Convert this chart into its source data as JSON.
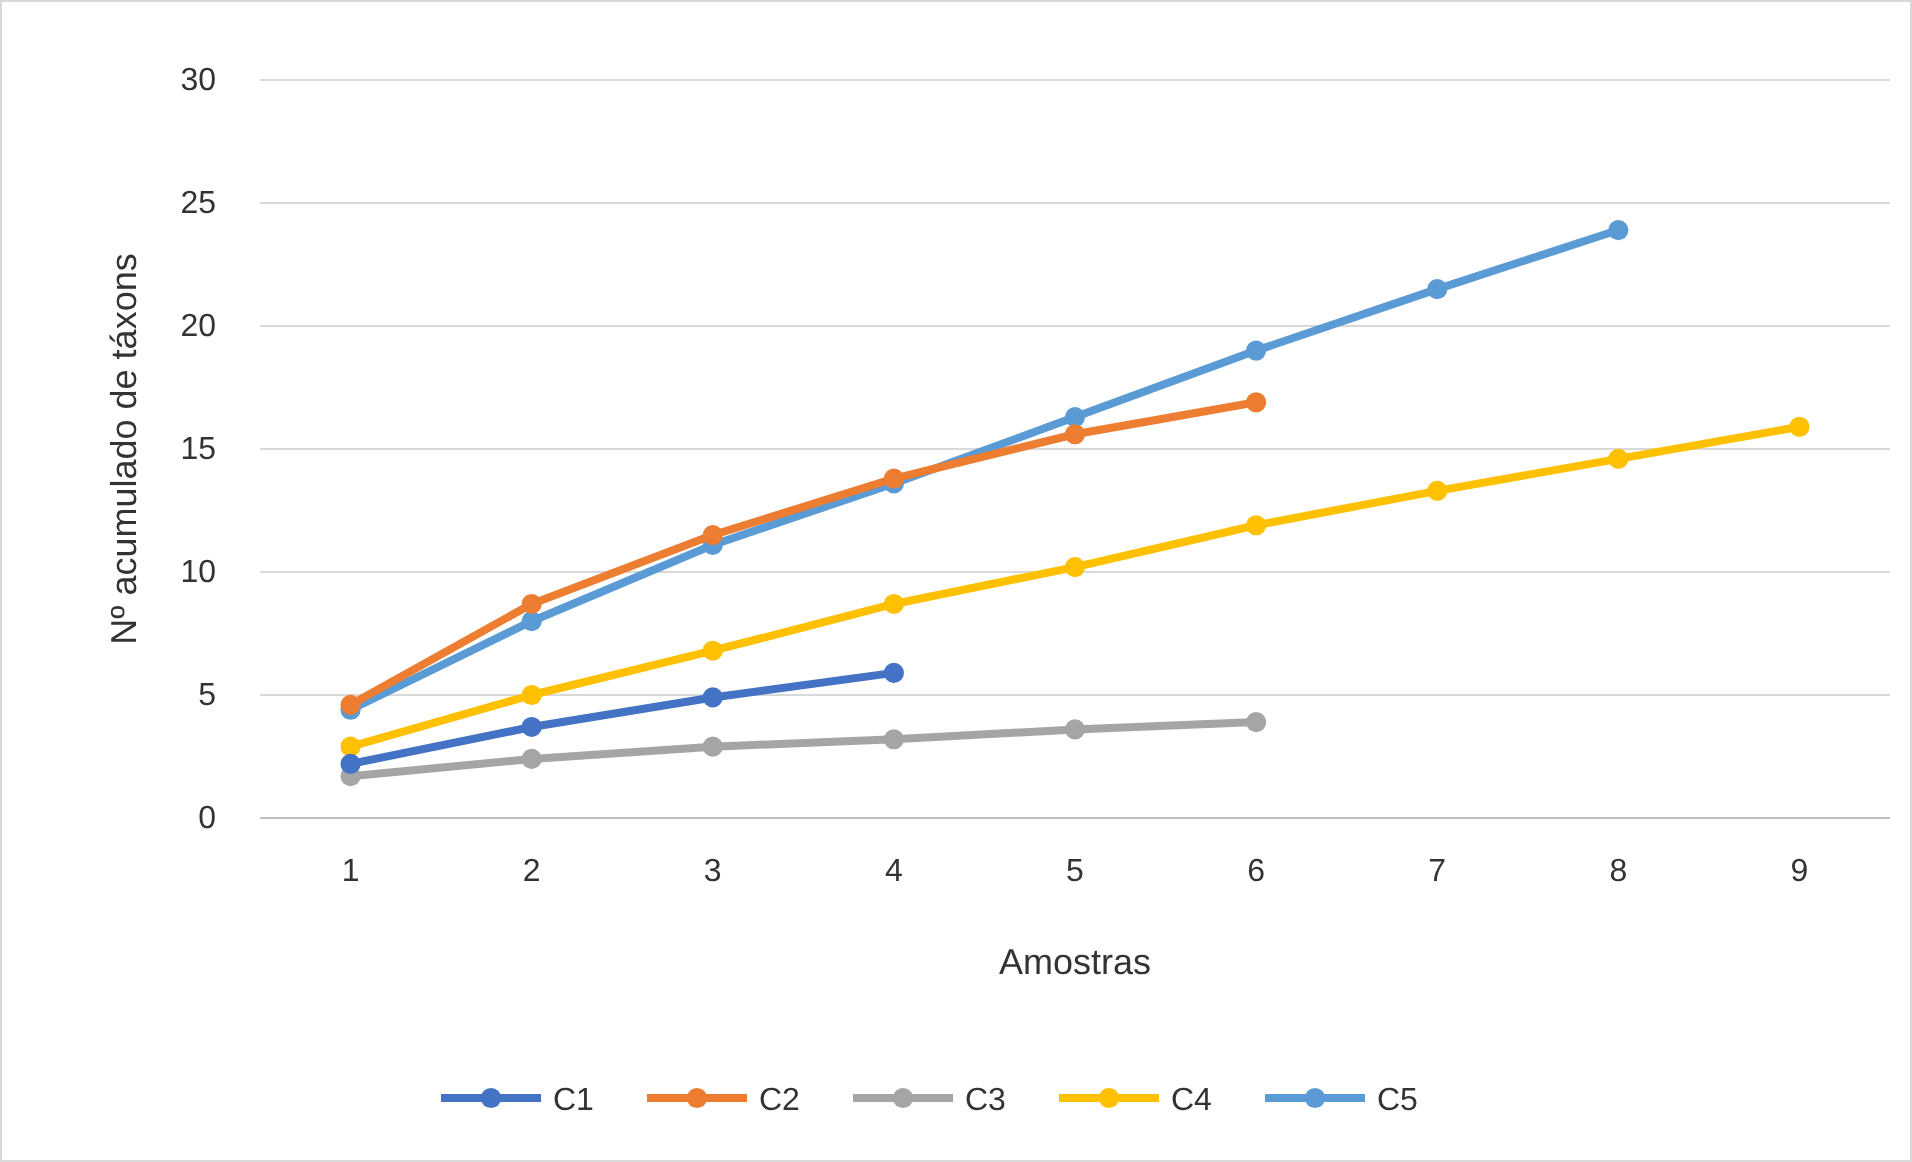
{
  "chart_data": {
    "type": "line",
    "xlabel": "Amostras",
    "ylabel": "Nº acumulado de táxons",
    "categories": [
      "1",
      "2",
      "3",
      "4",
      "5",
      "6",
      "7",
      "8",
      "9"
    ],
    "series": [
      {
        "name": "C1",
        "color": "#4472c4",
        "values": [
          2.2,
          3.7,
          4.9,
          5.9,
          null,
          null,
          null,
          null,
          null
        ]
      },
      {
        "name": "C2",
        "color": "#ed7d31",
        "values": [
          4.6,
          8.7,
          11.5,
          13.8,
          15.6,
          16.9,
          null,
          null,
          null
        ]
      },
      {
        "name": "C3",
        "color": "#a5a5a5",
        "values": [
          1.7,
          2.4,
          2.9,
          3.2,
          3.6,
          3.9,
          null,
          null,
          null
        ]
      },
      {
        "name": "C4",
        "color": "#ffc000",
        "values": [
          2.9,
          5.0,
          6.8,
          8.7,
          10.2,
          11.9,
          13.3,
          14.6,
          15.9
        ]
      },
      {
        "name": "C5",
        "color": "#5b9bd5",
        "values": [
          4.4,
          8.0,
          11.1,
          13.6,
          16.3,
          19.0,
          21.5,
          23.9,
          null
        ]
      }
    ],
    "ylim": [
      0,
      30
    ],
    "yticks": [
      0,
      5,
      10,
      15,
      20,
      25,
      30
    ],
    "grid": "y",
    "legend": "bottom",
    "marker": "circle",
    "line_style": "solid"
  }
}
